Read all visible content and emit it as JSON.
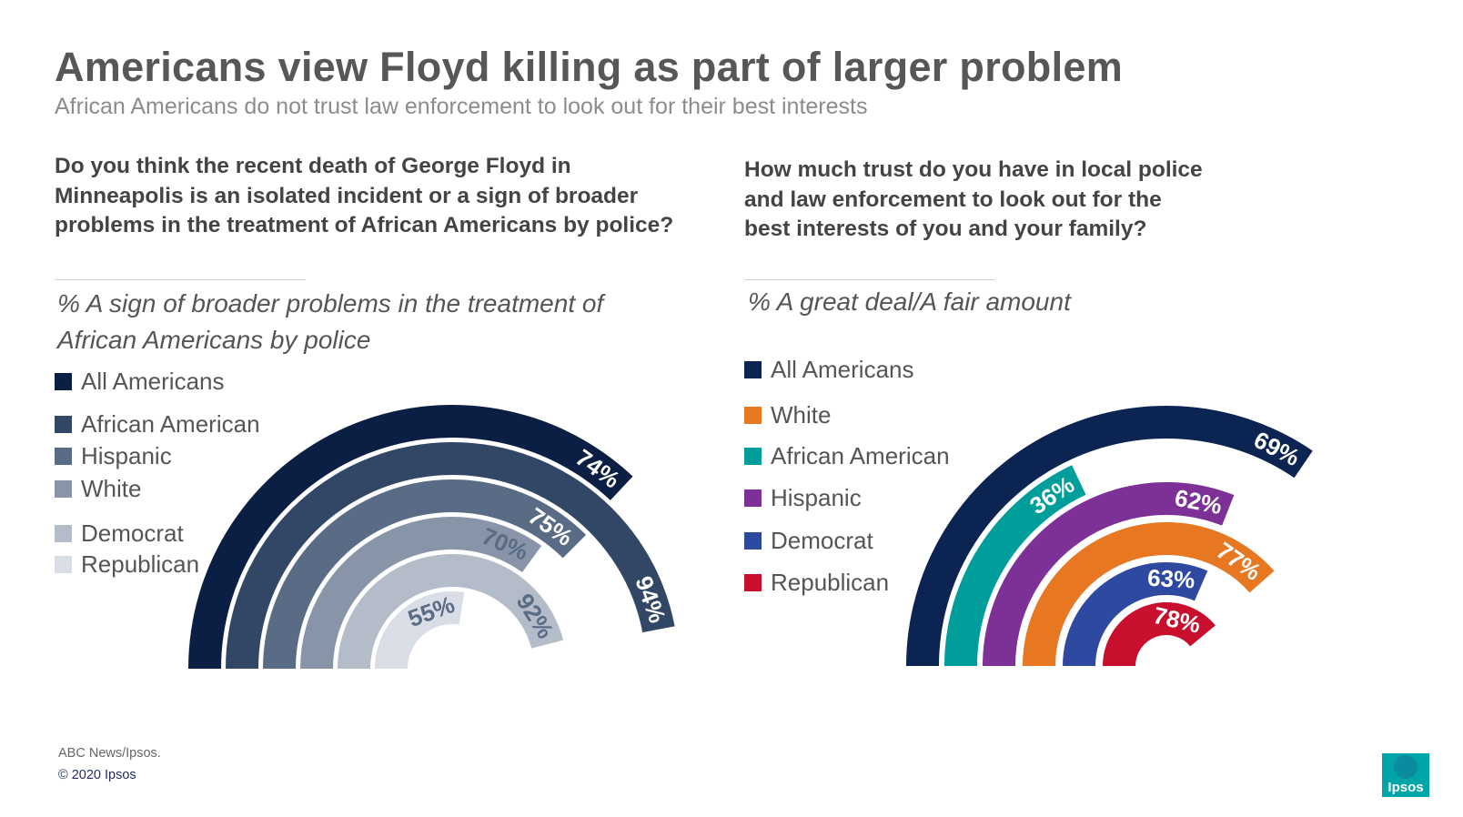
{
  "title": "Americans view Floyd killing as part of larger problem",
  "subtitle": "African Americans do not trust law enforcement to look out for their best interests",
  "left": {
    "question": "Do you think the recent death of George Floyd in Minneapolis is an isolated incident or a sign of broader problems in the treatment of African Americans by police?",
    "metric": "% A sign of broader problems in the treatment of African Americans by police"
  },
  "right": {
    "question": "How much trust do you have in local police and law enforcement to look out for the best interests of you and your family?",
    "metric": "% A great deal/A fair amount"
  },
  "chart_data": [
    {
      "type": "radial-bar",
      "series": [
        {
          "name": "All Americans",
          "value": 74,
          "label": "74%",
          "color": "#0b1f44"
        },
        {
          "name": "African American",
          "value": 94,
          "label": "94%",
          "color": "#324766"
        },
        {
          "name": "Hispanic",
          "value": 75,
          "label": "75%",
          "color": "#5a6b85"
        },
        {
          "name": "White",
          "value": 70,
          "label": "70%",
          "color": "#8895a8"
        },
        {
          "name": "Democrat",
          "value": 92,
          "label": "92%",
          "color": "#b4bcc9"
        },
        {
          "name": "Republican",
          "value": 55,
          "label": "55%",
          "color": "#d9dee6"
        }
      ]
    },
    {
      "type": "radial-bar",
      "series": [
        {
          "name": "All Americans",
          "value": 69,
          "label": "69%",
          "color": "#0b2452"
        },
        {
          "name": "African American",
          "value": 36,
          "label": "36%",
          "color": "#009e9a"
        },
        {
          "name": "Hispanic",
          "value": 62,
          "label": "62%",
          "color": "#7d3197"
        },
        {
          "name": "White",
          "value": 77,
          "label": "77%",
          "color": "#e87722"
        },
        {
          "name": "Democrat",
          "value": 63,
          "label": "63%",
          "color": "#2e4aa0"
        },
        {
          "name": "Republican",
          "value": 78,
          "label": "78%",
          "color": "#c8102e"
        }
      ]
    }
  ],
  "legend_left": [
    {
      "label": "All Americans",
      "color": "#0b1f44"
    },
    {
      "label": "African American",
      "color": "#324766"
    },
    {
      "label": "Hispanic",
      "color": "#5a6b85"
    },
    {
      "label": "White",
      "color": "#8895a8"
    },
    {
      "label": "Democrat",
      "color": "#b4bcc9"
    },
    {
      "label": "Republican",
      "color": "#d9dee6"
    }
  ],
  "legend_right": [
    {
      "label": "All Americans",
      "color": "#0b2452"
    },
    {
      "label": "White",
      "color": "#e87722"
    },
    {
      "label": "African American",
      "color": "#009e9a"
    },
    {
      "label": "Hispanic",
      "color": "#7d3197"
    },
    {
      "label": "Democrat",
      "color": "#2e4aa0"
    },
    {
      "label": "Republican",
      "color": "#c8102e"
    }
  ],
  "footer": {
    "source": "ABC News/Ipsos.",
    "copyright": "© 2020 Ipsos",
    "logo_text": "Ipsos",
    "logo_color": "#00a5a8"
  }
}
